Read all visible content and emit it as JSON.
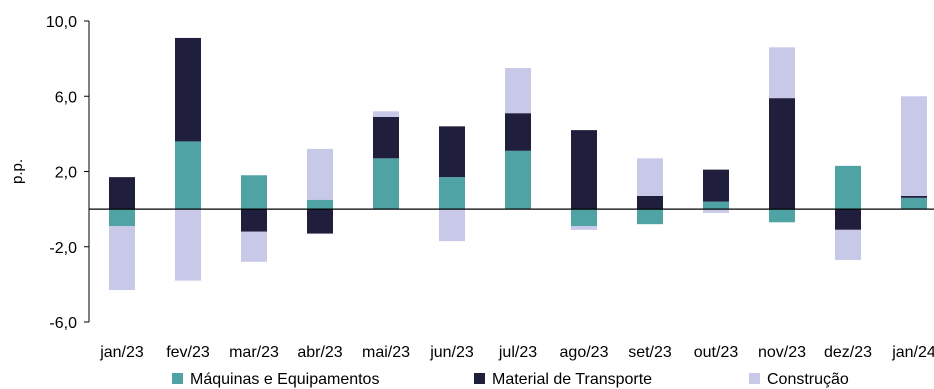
{
  "chart_data": {
    "type": "bar",
    "stacked": true,
    "ylabel": "p.p.",
    "xlabel": "",
    "ylim": [
      -6.0,
      10.0
    ],
    "yticks": [
      "10,0",
      "6,0",
      "2,0",
      "-2,0",
      "-6,0"
    ],
    "ytick_values": [
      10,
      6,
      2,
      -2,
      -6
    ],
    "categories": [
      "jan/23",
      "fev/23",
      "mar/23",
      "abr/23",
      "mai/23",
      "jun/23",
      "jul/23",
      "ago/23",
      "set/23",
      "out/23",
      "nov/23",
      "dez/23",
      "jan/24"
    ],
    "series": [
      {
        "name": "Máquinas e Equipamentos",
        "color": "#4fa3a5",
        "values": [
          -0.9,
          3.6,
          1.8,
          0.5,
          2.7,
          1.7,
          3.1,
          -0.9,
          -0.8,
          0.4,
          -0.7,
          2.3,
          0.6
        ]
      },
      {
        "name": "Material de Transporte",
        "color": "#1f1f3d",
        "values": [
          1.7,
          5.5,
          -1.2,
          -1.3,
          2.2,
          2.7,
          2.0,
          4.2,
          0.7,
          1.7,
          5.9,
          -1.1,
          0.1
        ]
      },
      {
        "name": "Construção",
        "color": "#c8c8e8",
        "values": [
          -3.4,
          -3.8,
          -1.6,
          2.7,
          0.3,
          -1.7,
          2.4,
          -0.2,
          2.0,
          -0.2,
          2.7,
          -1.6,
          5.3
        ]
      }
    ],
    "grid": false,
    "legend": "bottom"
  }
}
